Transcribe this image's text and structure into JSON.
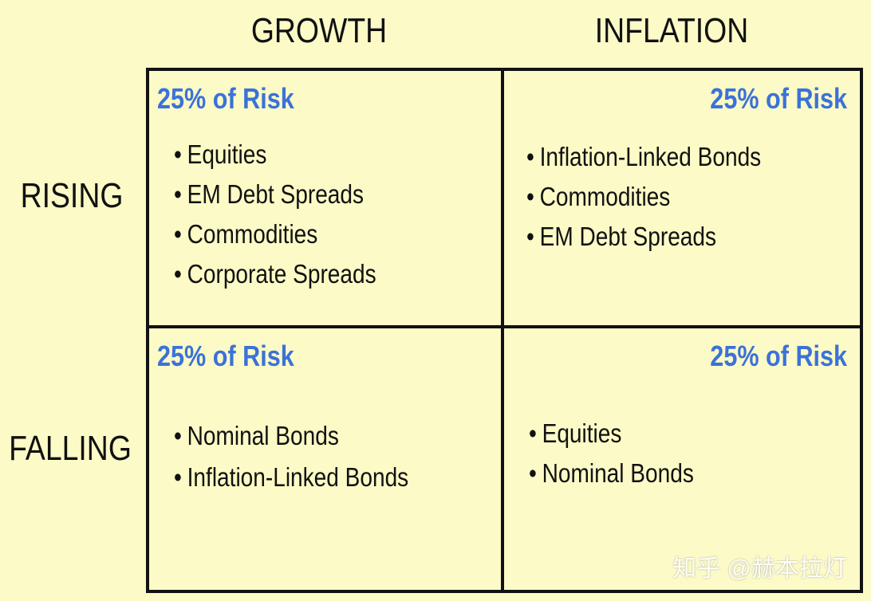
{
  "column_headers": [
    "GROWTH",
    "INFLATION"
  ],
  "row_headers": [
    "RISING",
    "FALLING"
  ],
  "cells": [
    [
      {
        "risk": "25% of Risk",
        "items": [
          "Equities",
          "EM Debt Spreads",
          "Commodities",
          "Corporate Spreads"
        ]
      },
      {
        "risk": "25% of Risk",
        "items": [
          "Inflation-Linked Bonds",
          "Commodities",
          "EM Debt Spreads"
        ]
      }
    ],
    [
      {
        "risk": "25% of Risk",
        "items": [
          "Nominal Bonds",
          "Inflation-Linked Bonds"
        ]
      },
      {
        "risk": "25% of Risk",
        "items": [
          "Equities",
          "Nominal Bonds"
        ]
      }
    ]
  ],
  "watermark": "知乎 @赫本拉灯"
}
